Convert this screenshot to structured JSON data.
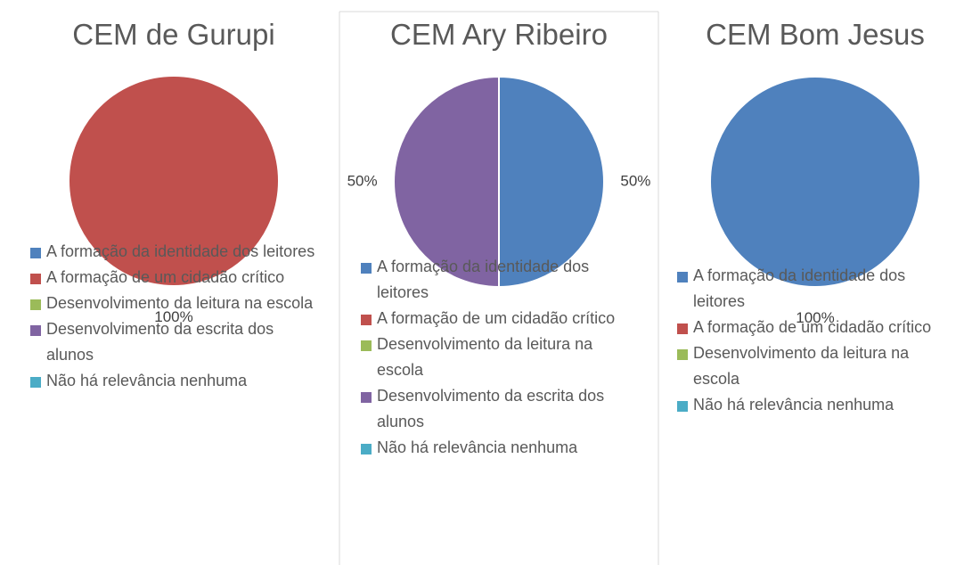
{
  "chart_data": [
    {
      "type": "pie",
      "title": "CEM de Gurupi",
      "categories": [
        "A formação da identidade dos leitores",
        "A formação de um cidadão crítico",
        "Desenvolvimento da leitura na escola",
        "Desenvolvimento da escrita dos alunos",
        "Não há relevância nenhuma"
      ],
      "values": [
        0,
        100,
        0,
        0,
        0
      ],
      "value_labels": [
        null,
        "100%",
        null,
        null,
        null
      ],
      "colors": [
        "#4f81bd",
        "#c0504d",
        "#9bbb59",
        "#8064a2",
        "#4bacc6"
      ]
    },
    {
      "type": "pie",
      "title": "CEM Ary Ribeiro",
      "categories": [
        "A formação da identidade dos leitores",
        "A formação de um cidadão crítico",
        "Desenvolvimento da leitura na escola",
        "Desenvolvimento da escrita dos alunos",
        "Não há relevância nenhuma"
      ],
      "values": [
        50,
        0,
        0,
        50,
        0
      ],
      "value_labels": [
        "50%",
        null,
        null,
        "50%",
        null
      ],
      "colors": [
        "#4f81bd",
        "#c0504d",
        "#9bbb59",
        "#8064a2",
        "#4bacc6"
      ]
    },
    {
      "type": "pie",
      "title": "CEM Bom Jesus",
      "categories": [
        "A formação da identidade dos leitores",
        "A formação de um cidadão crítico",
        "Desenvolvimento da leitura na escola",
        "Não há relevância nenhuma"
      ],
      "values": [
        100,
        0,
        0,
        0
      ],
      "value_labels": [
        "100%",
        null,
        null,
        null
      ],
      "colors": [
        "#4f81bd",
        "#c0504d",
        "#9bbb59",
        "#4bacc6"
      ]
    }
  ]
}
